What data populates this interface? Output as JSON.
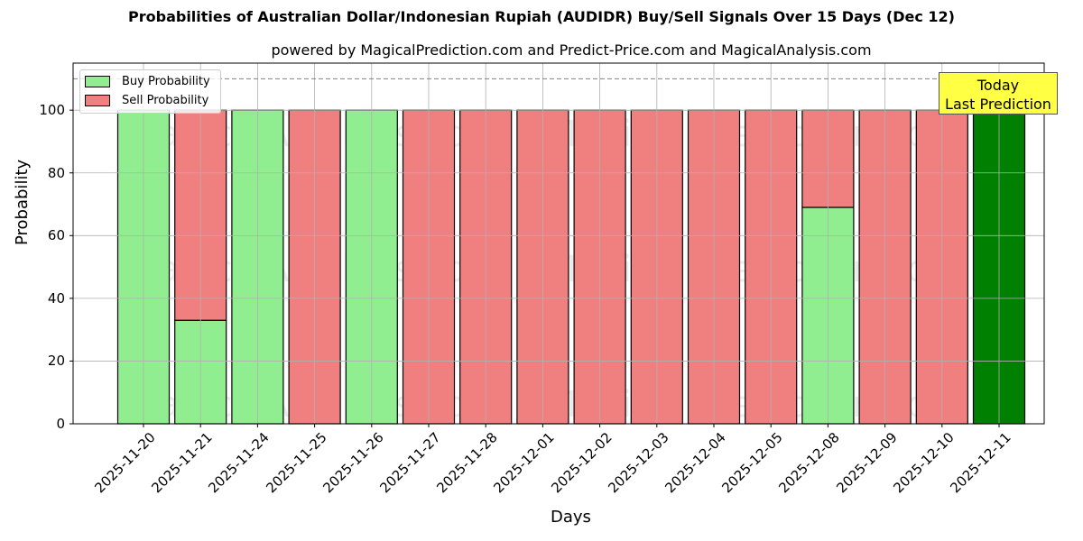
{
  "header": {
    "title": "Probabilities of Australian Dollar/Indonesian Rupiah (AUDIDR) Buy/Sell Signals Over 15 Days (Dec 12)",
    "subtitle": "powered by MagicalPrediction.com and Predict-Price.com and MagicalAnalysis.com"
  },
  "axes": {
    "xlabel": "Days",
    "ylabel": "Probability",
    "yticks": [
      "0",
      "20",
      "40",
      "60",
      "80",
      "100"
    ]
  },
  "legend": {
    "buy_label": "Buy Probability",
    "sell_label": "Sell Probability"
  },
  "annotation": {
    "line1": "Today",
    "line2": "Last Prediction"
  },
  "watermarks": [
    "MagicalAnalysis.com",
    "Magical Prediction.com"
  ],
  "colors": {
    "buy": "#90ee90",
    "sell": "#f08080",
    "today": "#008000",
    "annotation_bg": "#ffff44"
  },
  "chart_data": {
    "type": "bar",
    "stacked": true,
    "title": "Probabilities of Australian Dollar/Indonesian Rupiah (AUDIDR) Buy/Sell Signals Over 15 Days (Dec 12)",
    "subtitle": "powered by MagicalPrediction.com and Predict-Price.com and MagicalAnalysis.com",
    "xlabel": "Days",
    "ylabel": "Probability",
    "ylim": [
      0,
      115
    ],
    "grid": true,
    "legend_position": "upper left",
    "reference_line": {
      "y": 110,
      "style": "dashed",
      "color": "#808080"
    },
    "categories": [
      "2025-11-20",
      "2025-11-21",
      "2025-11-24",
      "2025-11-25",
      "2025-11-26",
      "2025-11-27",
      "2025-11-28",
      "2025-12-01",
      "2025-12-02",
      "2025-12-03",
      "2025-12-04",
      "2025-12-05",
      "2025-12-08",
      "2025-12-09",
      "2025-12-10",
      "2025-12-11"
    ],
    "series": [
      {
        "name": "Buy Probability",
        "values": [
          100,
          33,
          100,
          0,
          100,
          0,
          0,
          0,
          0,
          0,
          0,
          0,
          69,
          0,
          0,
          100
        ]
      },
      {
        "name": "Sell Probability",
        "values": [
          0,
          67,
          0,
          100,
          0,
          100,
          100,
          100,
          100,
          100,
          100,
          100,
          31,
          100,
          100,
          0
        ]
      }
    ],
    "annotations": [
      {
        "text": "Today\nLast Prediction",
        "x": "2025-12-11",
        "highlight_color": "#008000"
      }
    ]
  }
}
